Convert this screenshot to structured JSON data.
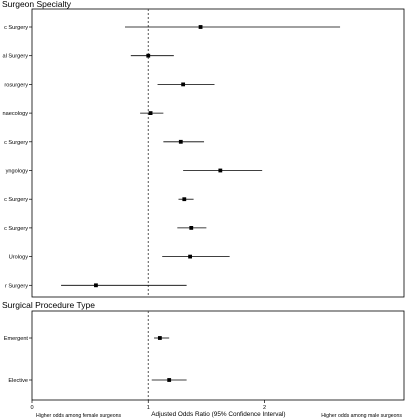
{
  "chart_data": {
    "type": "forest",
    "xlabel": "Adjusted Odds Ratio (95% Confidence Interval)",
    "xlim": [
      0,
      3.2
    ],
    "xticks": [
      "0",
      "1",
      "2"
    ],
    "reference_line": 1,
    "left_note": "Higher odds among female surgeons",
    "right_note": "Higher odds among male surgeons",
    "panels": [
      {
        "title": "Surgeon Specialty",
        "categories": [
          "c Surgery",
          "al Surgery",
          "rosurgery",
          "naecology",
          "c Surgery",
          "yngology",
          "c Surgery",
          "c Surgery",
          "Urology",
          "r Surgery"
        ],
        "estimate": [
          1.45,
          1.0,
          1.3,
          1.02,
          1.28,
          1.62,
          1.31,
          1.37,
          1.36,
          0.55
        ],
        "lower": [
          0.8,
          0.85,
          1.08,
          0.93,
          1.13,
          1.3,
          1.26,
          1.25,
          1.12,
          0.25
        ],
        "upper": [
          2.65,
          1.22,
          1.57,
          1.13,
          1.48,
          1.98,
          1.39,
          1.5,
          1.7,
          1.33
        ]
      },
      {
        "title": "Surgical Procedure Type",
        "categories": [
          "Emergent",
          "Elective"
        ],
        "estimate": [
          1.1,
          1.18
        ],
        "lower": [
          1.05,
          1.03
        ],
        "upper": [
          1.18,
          1.33
        ]
      }
    ]
  }
}
